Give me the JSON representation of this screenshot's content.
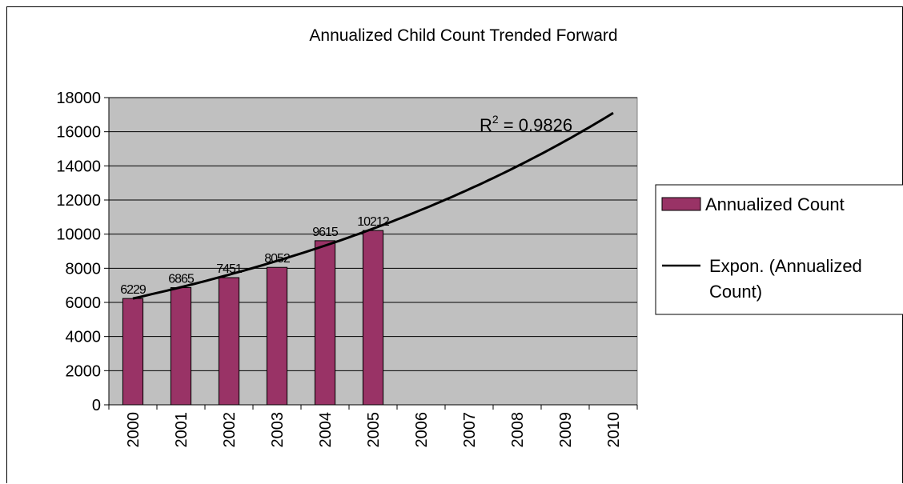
{
  "chart_data": {
    "type": "bar",
    "title": "Annualized Child Count Trended Forward",
    "categories": [
      "2000",
      "2001",
      "2002",
      "2003",
      "2004",
      "2005",
      "2006",
      "2007",
      "2008",
      "2009",
      "2010"
    ],
    "series": [
      {
        "name": "Annualized Count",
        "values": [
          6229,
          6865,
          7451,
          8052,
          9615,
          10212,
          null,
          null,
          null,
          null,
          null
        ],
        "data_labels": [
          "6229",
          "6865",
          "7451",
          "8052",
          "9615",
          "10212"
        ]
      }
    ],
    "trendline": {
      "name": "Expon. (Annualized Count)",
      "type": "exponential",
      "start_value": 6229,
      "end_value": 17100,
      "r2_label": "R",
      "r2_sup": "2",
      "r2_value": " = 0.9826"
    },
    "y_ticks": [
      "0",
      "2000",
      "4000",
      "6000",
      "8000",
      "10000",
      "12000",
      "14000",
      "16000",
      "18000"
    ],
    "ylim": [
      0,
      18000
    ],
    "grid": true,
    "legend_position": "right",
    "colors": {
      "bar": "#993366",
      "plot_background": "#c0c0c0",
      "trendline": "#000000",
      "gridline": "#000000"
    }
  }
}
